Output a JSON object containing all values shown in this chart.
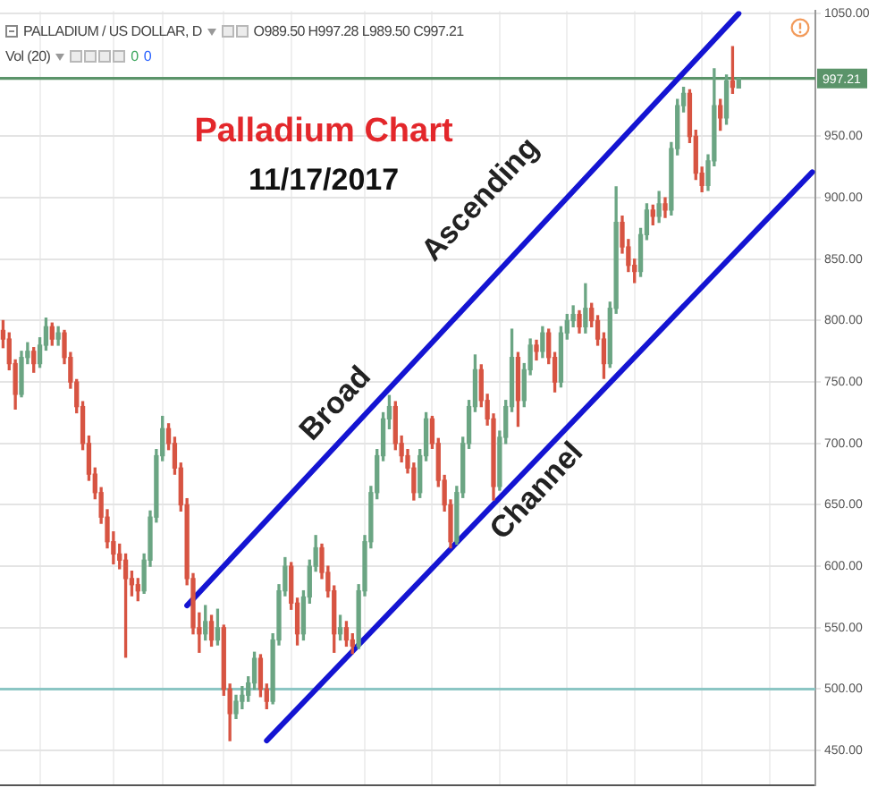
{
  "chart_data": {
    "type": "candlestick",
    "title": "Palladium Chart",
    "subtitle": "11/17/2017",
    "categories": [
      null,
      null,
      null,
      null,
      null,
      null,
      null,
      null,
      null,
      null,
      null,
      null,
      null,
      null,
      null,
      null,
      null,
      null,
      null,
      null,
      null,
      null,
      null,
      null,
      null,
      null,
      null,
      null,
      null,
      null,
      null,
      null,
      null,
      null,
      null,
      null,
      null,
      null,
      null,
      null,
      null,
      null,
      null,
      null,
      null,
      null,
      null,
      null,
      null,
      null,
      null,
      null,
      null,
      null,
      null,
      null,
      null,
      null,
      null,
      null,
      null,
      null,
      null,
      null,
      null,
      null,
      null,
      null,
      null,
      null,
      null,
      null,
      null,
      null,
      null,
      null,
      null,
      null,
      null,
      null,
      null,
      null,
      null,
      null,
      null,
      null,
      null,
      null,
      null,
      null,
      null,
      null,
      null,
      null,
      null,
      null,
      null,
      null,
      null,
      null,
      null,
      null,
      null,
      null,
      null,
      null,
      null,
      null,
      null,
      null,
      null,
      null,
      null,
      null,
      null,
      null,
      null,
      null,
      null,
      null,
      null,
      null,
      null,
      null,
      null,
      null,
      null,
      null,
      null,
      null,
      null,
      null,
      null
    ],
    "ohlc": [
      [
        792,
        800,
        778,
        785
      ],
      [
        785,
        790,
        760,
        765
      ],
      [
        765,
        768,
        728,
        740
      ],
      [
        740,
        775,
        738,
        770
      ],
      [
        770,
        782,
        765,
        775
      ],
      [
        775,
        778,
        758,
        765
      ],
      [
        765,
        786,
        762,
        780
      ],
      [
        780,
        802,
        776,
        795
      ],
      [
        795,
        798,
        780,
        785
      ],
      [
        785,
        795,
        780,
        790
      ],
      [
        790,
        792,
        765,
        770
      ],
      [
        770,
        774,
        745,
        750
      ],
      [
        750,
        752,
        725,
        730
      ],
      [
        730,
        734,
        695,
        700
      ],
      [
        700,
        706,
        670,
        675
      ],
      [
        675,
        680,
        655,
        660
      ],
      [
        660,
        664,
        635,
        640
      ],
      [
        640,
        646,
        615,
        620
      ],
      [
        620,
        628,
        602,
        610
      ],
      [
        610,
        618,
        598,
        605
      ],
      [
        605,
        610,
        526,
        590
      ],
      [
        590,
        596,
        576,
        585
      ],
      [
        585,
        590,
        572,
        580
      ],
      [
        580,
        610,
        578,
        605
      ],
      [
        605,
        645,
        600,
        640
      ],
      [
        640,
        695,
        636,
        690
      ],
      [
        690,
        722,
        686,
        712
      ],
      [
        712,
        716,
        695,
        700
      ],
      [
        700,
        705,
        675,
        680
      ],
      [
        680,
        684,
        645,
        650
      ],
      [
        650,
        655,
        585,
        590
      ],
      [
        590,
        594,
        545,
        550
      ],
      [
        550,
        562,
        530,
        545
      ],
      [
        545,
        568,
        540,
        555
      ],
      [
        555,
        560,
        535,
        540
      ],
      [
        540,
        565,
        536,
        550
      ],
      [
        550,
        552,
        495,
        500
      ],
      [
        500,
        504,
        458,
        480
      ],
      [
        480,
        495,
        476,
        490
      ],
      [
        490,
        502,
        484,
        495
      ],
      [
        495,
        510,
        490,
        505
      ],
      [
        505,
        530,
        500,
        525
      ],
      [
        525,
        528,
        494,
        500
      ],
      [
        500,
        504,
        484,
        490
      ],
      [
        490,
        545,
        488,
        540
      ],
      [
        540,
        585,
        536,
        580
      ],
      [
        580,
        607,
        576,
        600
      ],
      [
        600,
        603,
        565,
        570
      ],
      [
        570,
        574,
        536,
        545
      ],
      [
        545,
        580,
        540,
        575
      ],
      [
        575,
        605,
        570,
        600
      ],
      [
        600,
        625,
        596,
        615
      ],
      [
        615,
        618,
        590,
        595
      ],
      [
        595,
        600,
        575,
        580
      ],
      [
        580,
        584,
        530,
        545
      ],
      [
        545,
        560,
        540,
        550
      ],
      [
        550,
        555,
        535,
        540
      ],
      [
        540,
        545,
        529,
        535
      ],
      [
        535,
        585,
        533,
        580
      ],
      [
        580,
        625,
        576,
        620
      ],
      [
        620,
        665,
        615,
        660
      ],
      [
        660,
        695,
        655,
        690
      ],
      [
        690,
        725,
        686,
        720
      ],
      [
        720,
        739,
        712,
        730
      ],
      [
        730,
        734,
        695,
        700
      ],
      [
        700,
        706,
        685,
        690
      ],
      [
        690,
        695,
        676,
        680
      ],
      [
        680,
        684,
        654,
        660
      ],
      [
        660,
        695,
        656,
        690
      ],
      [
        690,
        725,
        686,
        720
      ],
      [
        720,
        722,
        696,
        700
      ],
      [
        700,
        704,
        665,
        670
      ],
      [
        670,
        674,
        645,
        650
      ],
      [
        650,
        654,
        615,
        620
      ],
      [
        620,
        665,
        618,
        660
      ],
      [
        660,
        705,
        656,
        700
      ],
      [
        700,
        735,
        696,
        730
      ],
      [
        730,
        772,
        726,
        760
      ],
      [
        760,
        764,
        730,
        735
      ],
      [
        735,
        740,
        715,
        720
      ],
      [
        720,
        724,
        654,
        665
      ],
      [
        665,
        710,
        662,
        705
      ],
      [
        705,
        735,
        700,
        730
      ],
      [
        730,
        793,
        726,
        770
      ],
      [
        770,
        774,
        714,
        735
      ],
      [
        735,
        765,
        730,
        760
      ],
      [
        760,
        785,
        756,
        780
      ],
      [
        780,
        784,
        768,
        775
      ],
      [
        775,
        795,
        770,
        790
      ],
      [
        790,
        793,
        765,
        770
      ],
      [
        770,
        774,
        742,
        750
      ],
      [
        750,
        795,
        746,
        790
      ],
      [
        790,
        805,
        785,
        800
      ],
      [
        800,
        812,
        795,
        805
      ],
      [
        805,
        808,
        790,
        795
      ],
      [
        795,
        830,
        790,
        810
      ],
      [
        810,
        814,
        795,
        800
      ],
      [
        800,
        804,
        780,
        785
      ],
      [
        785,
        790,
        753,
        765
      ],
      [
        765,
        815,
        762,
        810
      ],
      [
        810,
        909,
        806,
        880
      ],
      [
        880,
        885,
        855,
        860
      ],
      [
        860,
        866,
        840,
        845
      ],
      [
        845,
        850,
        831,
        840
      ],
      [
        840,
        875,
        836,
        870
      ],
      [
        870,
        895,
        866,
        890
      ],
      [
        890,
        894,
        878,
        885
      ],
      [
        885,
        905,
        880,
        895
      ],
      [
        895,
        900,
        884,
        890
      ],
      [
        890,
        945,
        886,
        940
      ],
      [
        940,
        980,
        935,
        975
      ],
      [
        975,
        990,
        970,
        985
      ],
      [
        985,
        988,
        945,
        950
      ],
      [
        950,
        955,
        915,
        920
      ],
      [
        920,
        925,
        905,
        910
      ],
      [
        910,
        935,
        906,
        930
      ],
      [
        930,
        1005,
        926,
        975
      ],
      [
        975,
        980,
        955,
        965
      ],
      [
        965,
        1000,
        960,
        995
      ],
      [
        995,
        1023,
        985,
        990
      ],
      [
        989.5,
        997.28,
        989.5,
        997.21
      ],
      null,
      null,
      null,
      null,
      null,
      null,
      null,
      null,
      null,
      null,
      null,
      null
    ],
    "colors": [
      "#d75442",
      "#d75442",
      "#d75442",
      "#6ba583",
      "#6ba583",
      "#d75442",
      "#6ba583",
      "#6ba583",
      "#d75442",
      "#6ba583",
      "#d75442",
      "#d75442",
      "#d75442",
      "#d75442",
      "#d75442",
      "#d75442",
      "#d75442",
      "#d75442",
      "#d75442",
      "#d75442",
      "#d75442",
      "#d75442",
      "#d75442",
      "#6ba583",
      "#6ba583",
      "#6ba583",
      "#6ba583",
      "#d75442",
      "#d75442",
      "#d75442",
      "#d75442",
      "#d75442",
      "#d75442",
      "#6ba583",
      "#d75442",
      "#6ba583",
      "#d75442",
      "#d75442",
      "#6ba583",
      "#6ba583",
      "#6ba583",
      "#6ba583",
      "#d75442",
      "#d75442",
      "#6ba583",
      "#6ba583",
      "#6ba583",
      "#d75442",
      "#d75442",
      "#6ba583",
      "#6ba583",
      "#6ba583",
      "#d75442",
      "#d75442",
      "#d75442",
      "#6ba583",
      "#d75442",
      "#d75442",
      "#6ba583",
      "#6ba583",
      "#6ba583",
      "#6ba583",
      "#6ba583",
      "#6ba583",
      "#d75442",
      "#d75442",
      "#d75442",
      "#d75442",
      "#6ba583",
      "#6ba583",
      "#d75442",
      "#d75442",
      "#d75442",
      "#d75442",
      "#6ba583",
      "#6ba583",
      "#6ba583",
      "#6ba583",
      "#d75442",
      "#d75442",
      "#d75442",
      "#6ba583",
      "#6ba583",
      "#6ba583",
      "#d75442",
      "#6ba583",
      "#6ba583",
      "#d75442",
      "#6ba583",
      "#d75442",
      "#d75442",
      "#6ba583",
      "#6ba583",
      "#6ba583",
      "#d75442",
      "#6ba583",
      "#d75442",
      "#d75442",
      "#d75442",
      "#6ba583",
      "#6ba583",
      "#d75442",
      "#d75442",
      "#d75442",
      "#6ba583",
      "#6ba583",
      "#d75442",
      "#6ba583",
      "#d75442",
      "#6ba583",
      "#6ba583",
      "#6ba583",
      "#d75442",
      "#d75442",
      "#d75442",
      "#6ba583",
      "#6ba583",
      "#d75442",
      "#6ba583",
      "#d75442",
      "#6ba583",
      null,
      null,
      null,
      null,
      null,
      null,
      null,
      null,
      null,
      null,
      null,
      null
    ],
    "series": [
      {
        "type": "line",
        "color": "#1414d2",
        "values": [
          null,
          null,
          null,
          null,
          null,
          null,
          null,
          null,
          null,
          null,
          null,
          null,
          null,
          null,
          null,
          null,
          null,
          null,
          null,
          null,
          null,
          null,
          null,
          null,
          null,
          null,
          null,
          null,
          null,
          null,
          568,
          null,
          null,
          null,
          null,
          null,
          null,
          null,
          null,
          null,
          null,
          null,
          null,
          null,
          null,
          null,
          null,
          null,
          null,
          null,
          null,
          null,
          null,
          null,
          null,
          null,
          null,
          null,
          null,
          null,
          null,
          null,
          null,
          null,
          null,
          null,
          null,
          null,
          null,
          null,
          null,
          null,
          null,
          null,
          null,
          null,
          null,
          null,
          null,
          null,
          null,
          null,
          null,
          null,
          null,
          null,
          null,
          null,
          null,
          null,
          null,
          null,
          null,
          null,
          null,
          null,
          null,
          null,
          null,
          null,
          null,
          null,
          null,
          null,
          null,
          null,
          null,
          null,
          null,
          null,
          null,
          null,
          null,
          null,
          null,
          null,
          null,
          null,
          null,
          null,
          1050,
          null,
          null,
          null,
          null,
          null,
          null,
          null,
          null,
          null,
          null,
          null,
          null
        ]
      },
      {
        "type": "line",
        "color": "#1414d2",
        "values": [
          null,
          null,
          null,
          null,
          null,
          null,
          null,
          null,
          null,
          null,
          null,
          null,
          null,
          null,
          null,
          null,
          null,
          null,
          null,
          null,
          null,
          null,
          null,
          null,
          null,
          null,
          null,
          null,
          null,
          null,
          null,
          null,
          null,
          null,
          null,
          null,
          null,
          null,
          null,
          null,
          null,
          null,
          null,
          458,
          null,
          null,
          null,
          null,
          null,
          null,
          null,
          null,
          null,
          null,
          null,
          null,
          null,
          null,
          null,
          null,
          null,
          null,
          null,
          null,
          null,
          null,
          null,
          null,
          null,
          null,
          null,
          null,
          null,
          null,
          null,
          null,
          null,
          null,
          null,
          null,
          null,
          null,
          null,
          null,
          null,
          null,
          null,
          null,
          null,
          null,
          null,
          null,
          null,
          null,
          null,
          null,
          null,
          null,
          null,
          null,
          null,
          null,
          null,
          null,
          null,
          null,
          null,
          null,
          null,
          null,
          null,
          null,
          null,
          null,
          null,
          null,
          null,
          null,
          null,
          null,
          null,
          null,
          null,
          null,
          null,
          null,
          null,
          null,
          null,
          null,
          null,
          null,
          921
        ]
      }
    ],
    "ylim": [
      422,
      1052
    ],
    "yticks": [
      {
        "value": 450,
        "label": "450.00"
      },
      {
        "value": 500,
        "label": "500.00"
      },
      {
        "value": 550,
        "label": "550.00"
      },
      {
        "value": 600,
        "label": "600.00"
      },
      {
        "value": 650,
        "label": "650.00"
      },
      {
        "value": 700,
        "label": "700.00"
      },
      {
        "value": 750,
        "label": "750.00"
      },
      {
        "value": 800,
        "label": "800.00"
      },
      {
        "value": 850,
        "label": "850.00"
      },
      {
        "value": 900,
        "label": "900.00"
      },
      {
        "value": 950,
        "label": "950.00"
      },
      {
        "value": 1050,
        "label": "1050.00"
      }
    ],
    "grid": true,
    "tick_labels": "y",
    "ref_lines": [
      {
        "axis": "y",
        "value": 997.21,
        "label": "997.21",
        "color": "#5b946a"
      },
      {
        "axis": "y",
        "value": 500,
        "color": "#8cc6c4"
      }
    ],
    "annotations": [
      "PALLADIUM / US DOLLAR, D",
      "O989.50 H997.28 L989.50 C997.21",
      "Vol (20)",
      "0",
      "0",
      "Broad",
      "Ascending",
      "Channel"
    ]
  }
}
